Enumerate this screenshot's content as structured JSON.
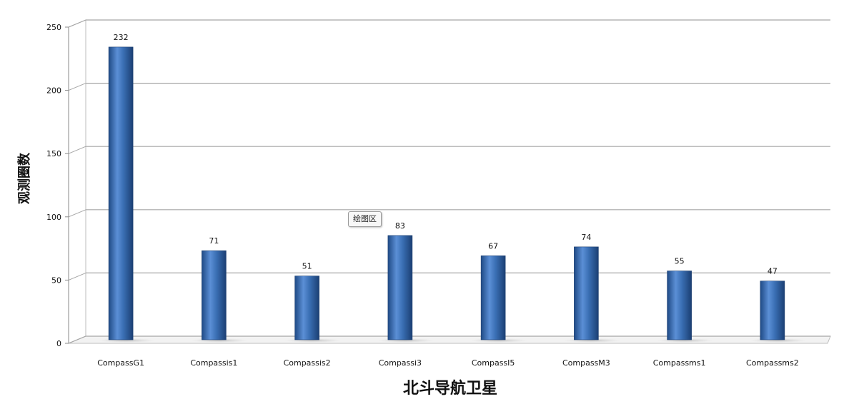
{
  "chart_data": {
    "type": "bar",
    "title": "",
    "xlabel": "北斗导航卫星",
    "ylabel": "观测圈数",
    "categories": [
      "CompassG1",
      "Compassis1",
      "Compassis2",
      "Compassi3",
      "CompassI5",
      "CompassM3",
      "Compassms1",
      "Compassms2"
    ],
    "values": [
      232,
      71,
      51,
      83,
      67,
      74,
      55,
      47
    ],
    "ylim": [
      0,
      250
    ],
    "yticks": [
      0,
      50,
      100,
      150,
      200,
      250
    ],
    "grid": true,
    "bar_color": "#3a6fb4",
    "annotation": "绘图区"
  }
}
